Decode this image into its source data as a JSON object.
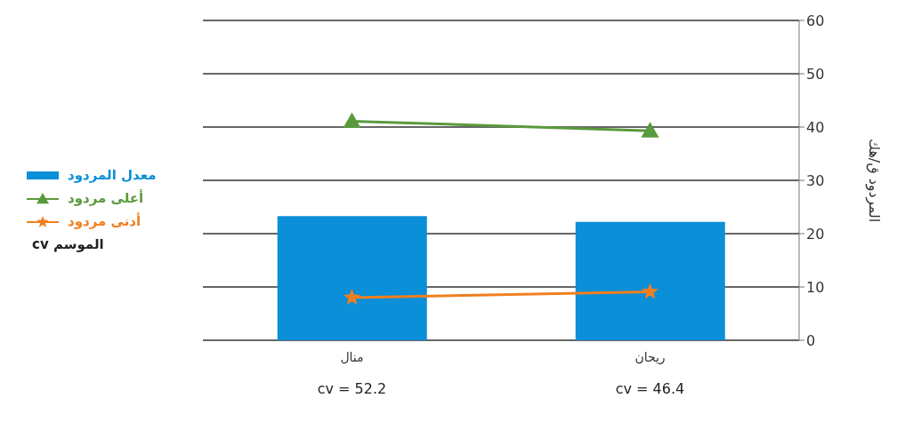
{
  "chart_data": {
    "type": "bar",
    "categories": [
      "منال",
      "ريحان"
    ],
    "series": [
      {
        "name": "معدل المردود",
        "color": "#0a8fd8",
        "values": [
          23.3,
          22.2
        ]
      },
      {
        "name": "أعلى مردود",
        "type": "line",
        "color": "#5a9a3c",
        "marker": "triangle",
        "values": [
          41.1,
          39.3
        ]
      },
      {
        "name": "أدنى مردود",
        "type": "line",
        "color": "#f07f1e",
        "marker": "star",
        "values": [
          8.0,
          9.1
        ]
      }
    ],
    "ylabel": "المردود ق/هك",
    "ylim": [
      0,
      60
    ],
    "yticks": [
      0,
      10,
      20,
      30,
      40,
      50,
      60
    ],
    "grid": "y",
    "legend": "left",
    "annotations": [
      "cv = 52.2",
      "cv = 46.4",
      "cv الموسم"
    ]
  }
}
